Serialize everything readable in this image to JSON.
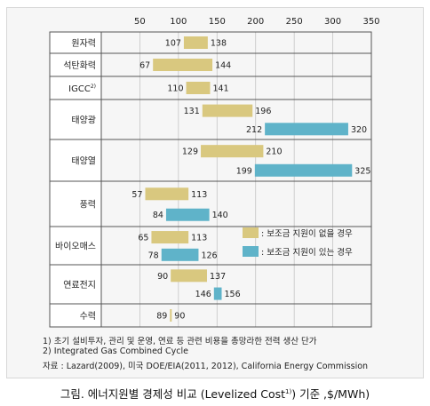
{
  "chart_data": {
    "type": "bar",
    "orientation": "horizontal-range",
    "x_ticks": [
      50,
      100,
      150,
      200,
      250,
      300,
      350
    ],
    "xlim": [
      0,
      350
    ],
    "grid": "vertical",
    "categories": [
      {
        "label": "원자력",
        "superscript": "",
        "bars": [
          {
            "series": 0,
            "low": 107,
            "high": 138
          }
        ]
      },
      {
        "label": "석탄화력",
        "superscript": "",
        "bars": [
          {
            "series": 0,
            "low": 67,
            "high": 144
          }
        ]
      },
      {
        "label": "IGCC",
        "superscript": "2)",
        "bars": [
          {
            "series": 0,
            "low": 110,
            "high": 141
          }
        ]
      },
      {
        "label": "태양광",
        "superscript": "",
        "bars": [
          {
            "series": 0,
            "low": 131,
            "high": 196
          },
          {
            "series": 1,
            "low": 212,
            "high": 320
          }
        ]
      },
      {
        "label": "태양열",
        "superscript": "",
        "bars": [
          {
            "series": 0,
            "low": 129,
            "high": 210
          },
          {
            "series": 1,
            "low": 199,
            "high": 325
          }
        ]
      },
      {
        "label": "풍력",
        "superscript": "",
        "bars": [
          {
            "series": 0,
            "low": 57,
            "high": 113
          },
          {
            "series": 1,
            "low": 84,
            "high": 140
          }
        ]
      },
      {
        "label": "바이오매스",
        "superscript": "",
        "bars": [
          {
            "series": 0,
            "low": 65,
            "high": 113
          },
          {
            "series": 1,
            "low": 78,
            "high": 126
          }
        ]
      },
      {
        "label": "연료전지",
        "superscript": "",
        "bars": [
          {
            "series": 0,
            "low": 90,
            "high": 137
          },
          {
            "series": 1,
            "low": 146,
            "high": 156
          }
        ]
      },
      {
        "label": "수력",
        "superscript": "",
        "bars": [
          {
            "series": 0,
            "low": 89,
            "high": 90
          }
        ]
      }
    ],
    "series": [
      {
        "name": ": 보조금 지원이 없을 경우",
        "color": "#d9c87f"
      },
      {
        "name": ": 보조금 지원이 있는 경우",
        "color": "#5fb3c9"
      }
    ],
    "legend_position": "right-middle"
  },
  "notes": [
    "1) 초기 설비투자, 관리 및 운영, 연료 등 관련 비용을 총망라한 전력 생산 단가",
    "2) Integrated Gas Combined Cycle",
    "자료 : Lazard(2009), 미국 DOE/EIA(2011, 2012), California Energy Commission"
  ],
  "caption": {
    "before": "그림. 에너지원별 경제성 비교 (Levelized Cost",
    "sup": "1)",
    "after": ") 기준 ,$/MWh)"
  }
}
